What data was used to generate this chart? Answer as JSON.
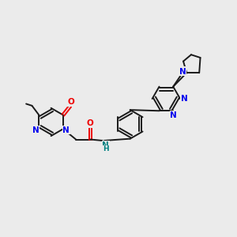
{
  "bg_color": "#ebebeb",
  "bond_color": "#1a1a1a",
  "N_color": "#0000ee",
  "O_color": "#ee0000",
  "NH_color": "#008080",
  "lw": 1.4,
  "dbo": 0.055,
  "figsize": [
    3.0,
    3.0
  ],
  "dpi": 100,
  "xlim": [
    0,
    10
  ],
  "ylim": [
    0,
    10
  ]
}
